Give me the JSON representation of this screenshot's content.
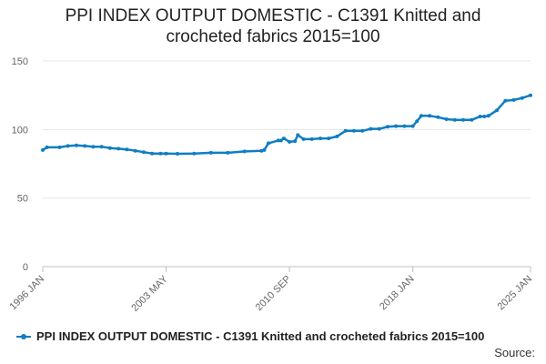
{
  "title": "PPI INDEX OUTPUT DOMESTIC - C1391 Knitted and crocheted fabrics 2015=100",
  "source_label": "Source:",
  "colors": {
    "series": "#0f7dc2",
    "grid": "#e6e6e6",
    "axis": "#c0c0c0",
    "tick_text": "#666666"
  },
  "chart_data": {
    "type": "line",
    "title": "PPI INDEX OUTPUT DOMESTIC - C1391 Knitted and crocheted fabrics 2015=100",
    "xlabel": "",
    "ylabel": "",
    "ylim": [
      0,
      150
    ],
    "yticks": [
      0,
      50,
      100,
      150
    ],
    "x_tick_labels": [
      "1996 JAN",
      "2003 MAY",
      "2010 SEP",
      "2018 JAN",
      "2025 JAN"
    ],
    "grid": true,
    "legend_position": "bottom",
    "series": [
      {
        "name": "PPI INDEX OUTPUT DOMESTIC - C1391 Knitted and crocheted fabrics 2015=100",
        "x": [
          "1996 JAN",
          "1996 APR",
          "1997 JAN",
          "1997 JUL",
          "1998 JAN",
          "1998 JUL",
          "1999 JAN",
          "1999 JUL",
          "2000 JAN",
          "2000 JUL",
          "2001 JAN",
          "2001 JUL",
          "2002 JAN",
          "2002 JUL",
          "2003 JAN",
          "2003 MAY",
          "2004 JAN",
          "2005 JAN",
          "2006 JAN",
          "2007 JAN",
          "2008 JAN",
          "2009 JAN",
          "2009 MAR",
          "2009 JUN",
          "2010 JAN",
          "2010 MAR",
          "2010 MAY",
          "2010 SEP",
          "2011 JAN",
          "2011 MAR",
          "2011 JUL",
          "2012 JAN",
          "2012 JUL",
          "2013 JAN",
          "2013 JUL",
          "2014 JAN",
          "2014 JUL",
          "2015 JAN",
          "2015 JUL",
          "2016 JAN",
          "2016 JUL",
          "2017 JAN",
          "2017 JUL",
          "2018 JAN",
          "2018 APR",
          "2018 JUL",
          "2019 JAN",
          "2019 JUL",
          "2020 JAN",
          "2020 JUL",
          "2021 JAN",
          "2021 JUL",
          "2022 JAN",
          "2022 APR",
          "2022 JUL",
          "2023 JAN",
          "2023 JUL",
          "2024 JAN",
          "2024 JUL",
          "2025 JAN"
        ],
        "values": [
          85,
          87,
          87,
          88,
          88.5,
          88,
          87.5,
          87.5,
          86.5,
          86,
          85.5,
          84.5,
          83.5,
          82.5,
          82.5,
          82.5,
          82.3,
          82.5,
          83,
          83,
          84,
          84.5,
          85,
          90,
          92,
          92,
          93.5,
          91,
          91.5,
          96,
          93,
          93,
          93.5,
          93.5,
          95,
          99,
          99,
          99,
          100.5,
          100.5,
          102,
          102.5,
          102.5,
          102.5,
          106,
          110,
          110,
          109,
          107.5,
          107,
          107,
          107,
          109.5,
          109.5,
          110,
          114,
          121,
          121.5,
          123,
          125
        ]
      }
    ]
  }
}
